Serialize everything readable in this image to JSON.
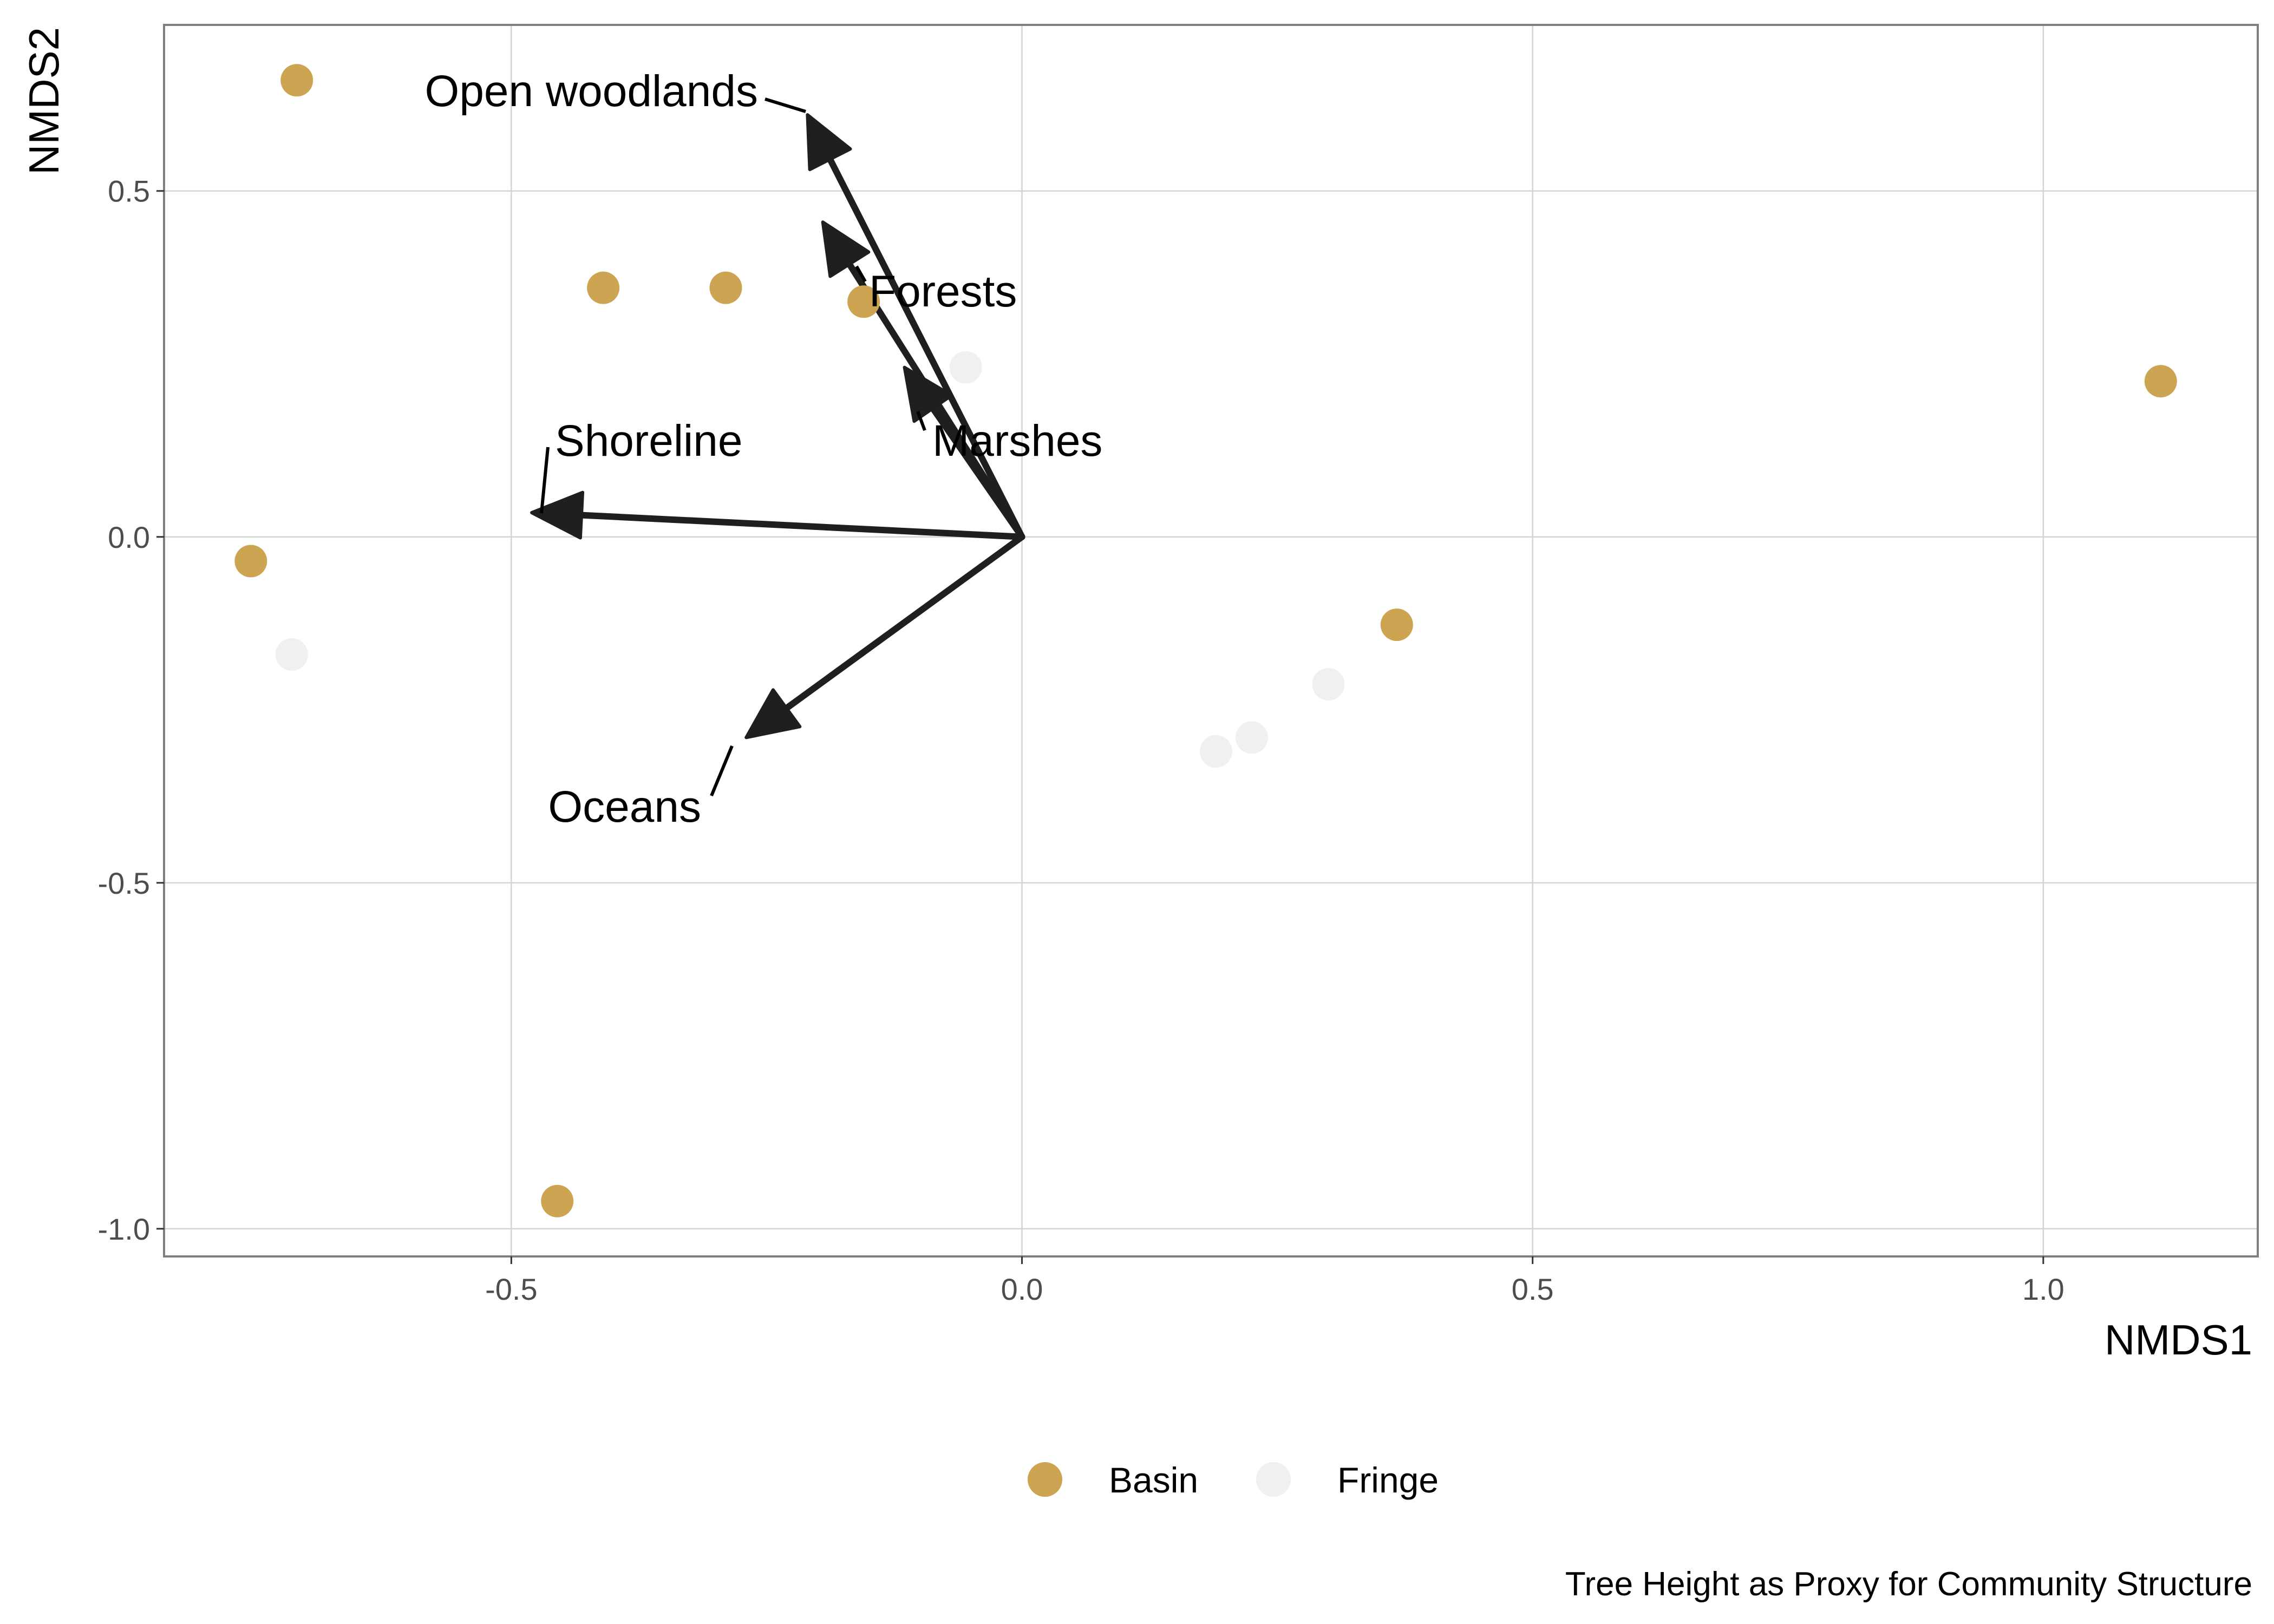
{
  "chart_data": {
    "type": "scatter",
    "xlabel": "NMDS1",
    "ylabel": "NMDS2",
    "caption": "Tree Height as Proxy for Community Structure",
    "xlim": [
      -0.84,
      1.21
    ],
    "ylim": [
      -1.04,
      0.74
    ],
    "x_ticks": [
      -0.5,
      0.0,
      0.5,
      1.0
    ],
    "y_ticks": [
      -1.0,
      -0.5,
      0.0,
      0.5
    ],
    "x_tick_labels": [
      "-0.5",
      "0.0",
      "0.5",
      "1.0"
    ],
    "y_tick_labels": [
      "-1.0",
      "-0.5",
      "0.0",
      "0.5"
    ],
    "grid": true,
    "legend_position": "bottom",
    "series": [
      {
        "name": "Basin",
        "color": "#CDA552",
        "points": [
          {
            "x": -0.71,
            "y": 0.66
          },
          {
            "x": -0.41,
            "y": 0.36
          },
          {
            "x": -0.29,
            "y": 0.36
          },
          {
            "x": -0.155,
            "y": 0.34
          },
          {
            "x": -0.755,
            "y": -0.035
          },
          {
            "x": -0.455,
            "y": -0.96
          },
          {
            "x": 0.367,
            "y": -0.127
          },
          {
            "x": 1.115,
            "y": 0.225
          }
        ]
      },
      {
        "name": "Fringe",
        "color": "#F0F0F0",
        "points": [
          {
            "x": -0.055,
            "y": 0.245
          },
          {
            "x": -0.715,
            "y": -0.17
          },
          {
            "x": 0.19,
            "y": -0.31
          },
          {
            "x": 0.225,
            "y": -0.29
          },
          {
            "x": 0.3,
            "y": -0.213
          }
        ]
      }
    ],
    "vectors": [
      {
        "label": "Open woodlands",
        "x": -0.21,
        "y": 0.61
      },
      {
        "label": "Forests",
        "x": -0.195,
        "y": 0.455
      },
      {
        "label": "Marshes",
        "x": -0.115,
        "y": 0.245
      },
      {
        "label": "Shoreline",
        "x": -0.48,
        "y": 0.035
      },
      {
        "label": "Oceans",
        "x": -0.27,
        "y": -0.29
      }
    ]
  }
}
